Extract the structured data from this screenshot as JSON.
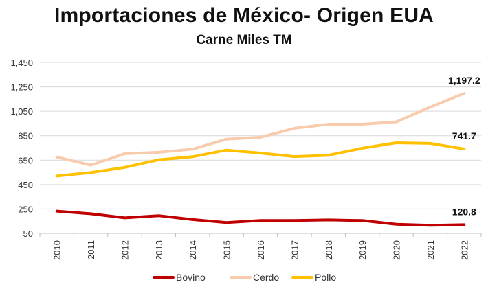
{
  "chart_data": {
    "type": "line",
    "title": "Importaciones de México- Origen EUA",
    "subtitle": "Carne Miles TM",
    "xlabel": "",
    "ylabel": "",
    "categories": [
      "2010",
      "2011",
      "2012",
      "2013",
      "2014",
      "2015",
      "2016",
      "2017",
      "2018",
      "2019",
      "2020",
      "2021",
      "2022"
    ],
    "ylim": [
      50,
      1450
    ],
    "yticks": [
      50,
      250,
      450,
      650,
      850,
      1050,
      1250,
      1450
    ],
    "ytick_labels": [
      "50",
      "250",
      "450",
      "650",
      "850",
      "1,050",
      "1,250",
      "1,450"
    ],
    "grid": true,
    "legend_position": "bottom",
    "series": [
      {
        "name": "Bovino",
        "color": "#c00000",
        "values": [
          232,
          211,
          177,
          195,
          163,
          138,
          155,
          155,
          160,
          155,
          124,
          116,
          120.8
        ],
        "end_label": "120.8"
      },
      {
        "name": "Cerdo",
        "color": "#f8cbad",
        "values": [
          675,
          609,
          703,
          714,
          740,
          822,
          837,
          911,
          944,
          944,
          963,
          1084,
          1197.2
        ],
        "end_label": "1,197.2"
      },
      {
        "name": "Pollo",
        "color": "#ffc000",
        "values": [
          520,
          548,
          591,
          653,
          678,
          732,
          708,
          679,
          690,
          748,
          792,
          787,
          741.7
        ],
        "end_label": "741.7"
      }
    ]
  }
}
